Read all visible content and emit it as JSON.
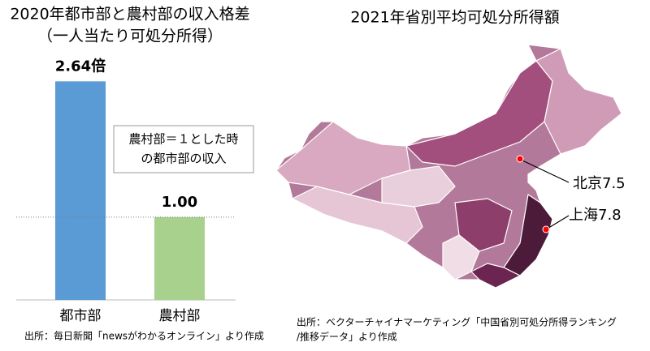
{
  "chart_data": [
    {
      "type": "bar",
      "title": [
        "2020年都市部と農村部の収入格差",
        "（一人当たり可処分所得）"
      ],
      "categories": [
        "都市部",
        "農村部"
      ],
      "values": [
        2.64,
        1.0
      ],
      "value_labels": [
        "2.64倍",
        "1.00"
      ],
      "colors": [
        "#5b9bd5",
        "#a9d18e"
      ],
      "ylim": [
        0,
        2.8
      ],
      "annotation": [
        "農村部＝１とした時",
        "の都市部の収入"
      ],
      "source": "出所：毎日新聞「newsがわかるオンライン」より作成"
    },
    {
      "type": "map",
      "title": "2021年省別平均可処分所得額",
      "markers": [
        {
          "label": "北京7.5"
        },
        {
          "label": "上海7.8"
        }
      ],
      "marker_color": "#ff0000",
      "source": [
        "出所：ベクターチャイナマーケティング「中国省別可処分所得ランキング",
        "/推移データ」より作成"
      ]
    }
  ]
}
